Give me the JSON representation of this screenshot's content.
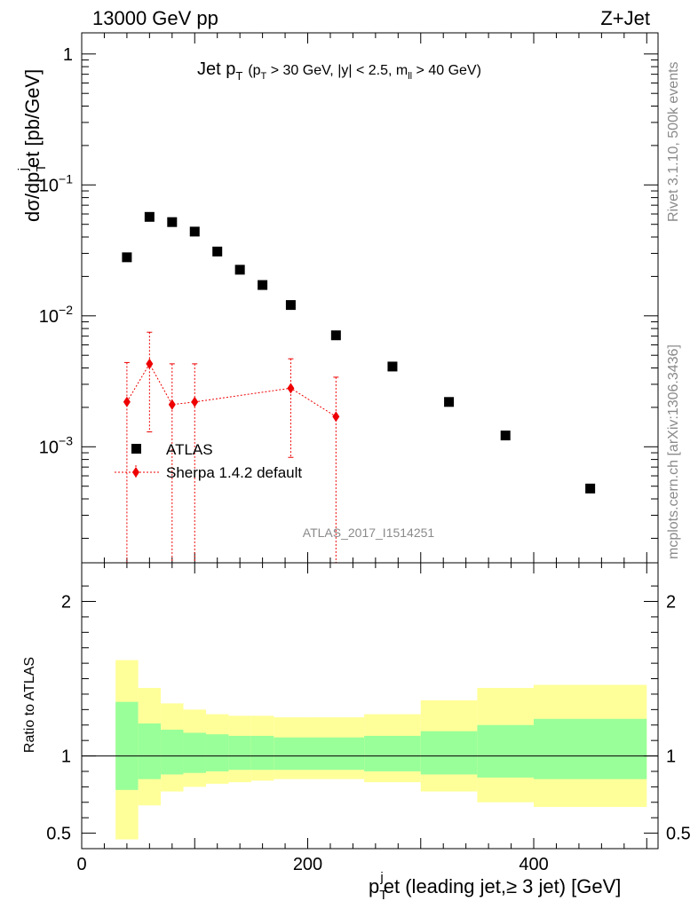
{
  "header": {
    "left": "13000 GeV pp",
    "right": "Z+Jet"
  },
  "side_text": {
    "rivet": "Rivet 3.1.10,  500k events",
    "mcplots": "mcplots.cern.ch [arXiv:1306.3436]"
  },
  "chart_data": {
    "type": "scatter",
    "title": "Jet p_T (p_T > 30 GeV, |y| < 2.5, m_ll > 40 GeV)",
    "title_parts": {
      "main": "Jet p",
      "main_sub": "T",
      "cond_a": "(p",
      "cond_a_sub": "T",
      "cond_b": " > 30 GeV, |y| < 2.5, m",
      "cond_b_sub": "ll",
      "cond_c": " > 40 GeV)"
    },
    "analysis_label": "ATLAS_2017_I1514251",
    "xlabel": "p_T^jet (leading jet, ≥ 3 jet) [GeV]",
    "xlabel_parts": {
      "p": "p",
      "sub": "T",
      "sup": "j",
      "rest": "et (leading jet,≥ 3 jet) [GeV]"
    },
    "ylabel": "dσ/dp_T^jet [pb/GeV]",
    "ylabel_parts": {
      "a": "dσ/dp",
      "sub": "T",
      "sup": "j",
      "b": "et [pb/GeV]"
    },
    "ratio_ylabel": "Ratio to ATLAS",
    "xlim": [
      0,
      510
    ],
    "ylim": [
      0.00013,
      1.45
    ],
    "ratio_ylim": [
      0.4,
      2.25
    ],
    "x_ticks": [
      {
        "v": 0,
        "label": "0"
      },
      {
        "v": 200,
        "label": "200"
      },
      {
        "v": 400,
        "label": "400"
      }
    ],
    "y_ticks": [
      {
        "v": 1,
        "base": "1",
        "exp": ""
      },
      {
        "v": 0.1,
        "base": "10",
        "exp": "−1"
      },
      {
        "v": 0.01,
        "base": "10",
        "exp": "−2"
      },
      {
        "v": 0.001,
        "base": "10",
        "exp": "−3"
      }
    ],
    "ratio_ticks": [
      {
        "v": 0.5,
        "label": "0.5"
      },
      {
        "v": 1,
        "label": "1"
      },
      {
        "v": 2,
        "label": "2"
      }
    ],
    "legend": [
      {
        "name": "ATLAS",
        "marker": "square",
        "color": "#000000"
      },
      {
        "name": "Sherpa 1.4.2 default",
        "marker": "diamond",
        "color": "#ee0000"
      }
    ],
    "series": [
      {
        "name": "ATLAS",
        "color": "#000000",
        "points": [
          {
            "x": 40,
            "y": 0.028
          },
          {
            "x": 60,
            "y": 0.057
          },
          {
            "x": 80,
            "y": 0.052
          },
          {
            "x": 100,
            "y": 0.044
          },
          {
            "x": 120,
            "y": 0.031
          },
          {
            "x": 140,
            "y": 0.0225
          },
          {
            "x": 160,
            "y": 0.0172
          },
          {
            "x": 185,
            "y": 0.0121
          },
          {
            "x": 225,
            "y": 0.0071
          },
          {
            "x": 275,
            "y": 0.0041
          },
          {
            "x": 325,
            "y": 0.0022
          },
          {
            "x": 375,
            "y": 0.00122
          },
          {
            "x": 450,
            "y": 0.00048
          }
        ]
      },
      {
        "name": "Sherpa 1.4.2 default",
        "color": "#ee0000",
        "points": [
          {
            "x": 40,
            "y": 0.0022,
            "ylo": 0.0001,
            "yhi": 0.0044
          },
          {
            "x": 60,
            "y": 0.0043,
            "ylo": 0.0013,
            "yhi": 0.0075
          },
          {
            "x": 80,
            "y": 0.0021,
            "ylo": 0.0001,
            "yhi": 0.0043
          },
          {
            "x": 100,
            "y": 0.0022,
            "ylo": 0.0001,
            "yhi": 0.0043
          },
          {
            "x": 185,
            "y": 0.0028,
            "ylo": 0.00083,
            "yhi": 0.0047
          },
          {
            "x": 225,
            "y": 0.0017,
            "ylo": 0.0001,
            "yhi": 0.0034
          }
        ]
      }
    ],
    "ratio_bands": [
      {
        "x0": 30,
        "x1": 50,
        "g_lo": 0.78,
        "g_hi": 1.35,
        "y_lo": 0.46,
        "y_hi": 1.62
      },
      {
        "x0": 50,
        "x1": 70,
        "g_lo": 0.85,
        "g_hi": 1.21,
        "y_lo": 0.68,
        "y_hi": 1.44
      },
      {
        "x0": 70,
        "x1": 90,
        "g_lo": 0.88,
        "g_hi": 1.17,
        "y_lo": 0.77,
        "y_hi": 1.34
      },
      {
        "x0": 90,
        "x1": 110,
        "g_lo": 0.89,
        "g_hi": 1.15,
        "y_lo": 0.8,
        "y_hi": 1.3
      },
      {
        "x0": 110,
        "x1": 130,
        "g_lo": 0.9,
        "g_hi": 1.14,
        "y_lo": 0.82,
        "y_hi": 1.27
      },
      {
        "x0": 130,
        "x1": 150,
        "g_lo": 0.91,
        "g_hi": 1.13,
        "y_lo": 0.83,
        "y_hi": 1.26
      },
      {
        "x0": 150,
        "x1": 170,
        "g_lo": 0.91,
        "g_hi": 1.13,
        "y_lo": 0.84,
        "y_hi": 1.26
      },
      {
        "x0": 170,
        "x1": 200,
        "g_lo": 0.91,
        "g_hi": 1.12,
        "y_lo": 0.85,
        "y_hi": 1.25
      },
      {
        "x0": 200,
        "x1": 250,
        "g_lo": 0.91,
        "g_hi": 1.12,
        "y_lo": 0.85,
        "y_hi": 1.25
      },
      {
        "x0": 250,
        "x1": 300,
        "g_lo": 0.9,
        "g_hi": 1.13,
        "y_lo": 0.83,
        "y_hi": 1.27
      },
      {
        "x0": 300,
        "x1": 350,
        "g_lo": 0.88,
        "g_hi": 1.16,
        "y_lo": 0.77,
        "y_hi": 1.36
      },
      {
        "x0": 350,
        "x1": 400,
        "g_lo": 0.86,
        "g_hi": 1.2,
        "y_lo": 0.7,
        "y_hi": 1.44
      },
      {
        "x0": 400,
        "x1": 500,
        "g_lo": 0.85,
        "g_hi": 1.24,
        "y_lo": 0.67,
        "y_hi": 1.46
      }
    ],
    "band_colors": {
      "inner": "#99ff99",
      "outer": "#ffff99"
    },
    "ref_line": 1
  }
}
